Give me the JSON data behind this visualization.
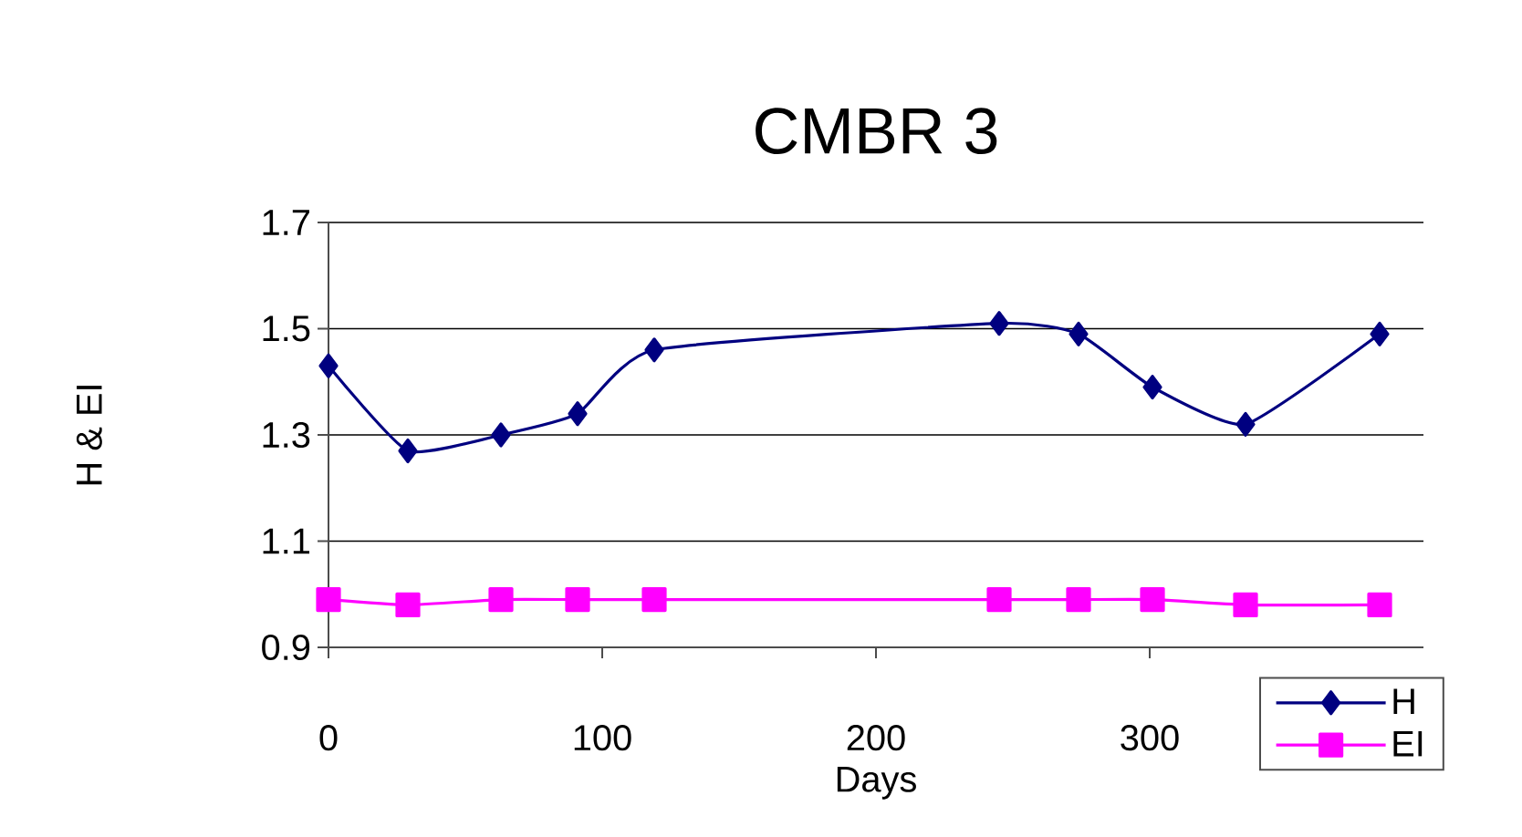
{
  "chart_data": {
    "type": "line",
    "title": "CMBR 3",
    "xlabel": "Days",
    "ylabel": "H & EI",
    "x": [
      0,
      29,
      63,
      91,
      119,
      245,
      274,
      301,
      335,
      384
    ],
    "series": [
      {
        "name": "H",
        "color": "#000080",
        "marker": "diamond",
        "values": [
          1.43,
          1.27,
          1.3,
          1.34,
          1.46,
          1.51,
          1.49,
          1.39,
          1.32,
          1.49
        ]
      },
      {
        "name": "EI",
        "color": "#ff00ff",
        "marker": "square",
        "values": [
          0.99,
          0.98,
          0.99,
          0.99,
          0.99,
          0.99,
          0.99,
          0.99,
          0.98,
          0.98
        ]
      }
    ],
    "xlim": [
      0,
      400
    ],
    "xticks": [
      0,
      100,
      200,
      300
    ],
    "ylim": [
      0.9,
      1.7
    ],
    "yticks": [
      0.9,
      1.1,
      1.3,
      1.5,
      1.7
    ],
    "grid": "y",
    "legend": "bottom right"
  }
}
